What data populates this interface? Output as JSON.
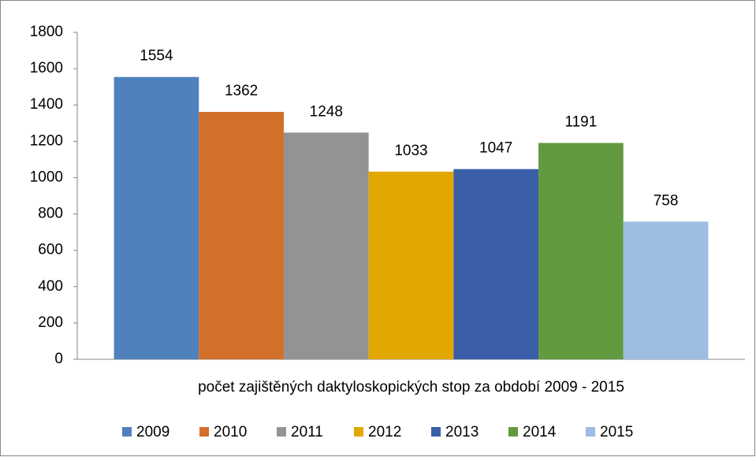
{
  "chart_data": {
    "type": "bar",
    "categories": [
      "počet zajištěných daktyloskopických stop za období 2009 - 2015"
    ],
    "series": [
      {
        "name": "2009",
        "color": "#4f81bd",
        "values": [
          1554
        ]
      },
      {
        "name": "2010",
        "color": "#d2702b",
        "values": [
          1362
        ]
      },
      {
        "name": "2011",
        "color": "#939393",
        "values": [
          1248
        ]
      },
      {
        "name": "2012",
        "color": "#e2a800",
        "values": [
          1033
        ]
      },
      {
        "name": "2013",
        "color": "#3a5ea8",
        "values": [
          1047
        ]
      },
      {
        "name": "2014",
        "color": "#629a3f",
        "values": [
          1191
        ]
      },
      {
        "name": "2015",
        "color": "#9dbde2",
        "values": [
          758
        ]
      }
    ],
    "ylim": [
      0,
      1800
    ],
    "yticks": [
      0,
      200,
      400,
      600,
      800,
      1000,
      1200,
      1400,
      1600,
      1800
    ],
    "grid": false,
    "legend": "bottom",
    "data_labels": true
  }
}
